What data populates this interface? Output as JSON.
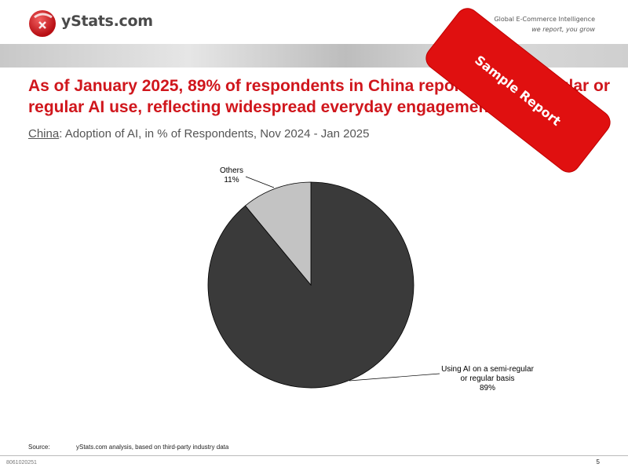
{
  "brand": {
    "logo_text": "yStats.com",
    "tagline_line1": "Global E-Commerce Intelligence",
    "tagline_line2": "we report, you grow"
  },
  "headline": "As of January 2025, 89% of respondents in China reported semi-regular or regular AI use, reflecting widespread everyday engagement with AI.",
  "subtitle": {
    "country": "China",
    "text": ": Adoption of AI, in % of Respondents, Nov 2024 - Jan 2025"
  },
  "stamp_text": "Sample Report",
  "chart_data": {
    "type": "pie",
    "slices": [
      {
        "label_line1": "Using AI on a semi-regular",
        "label_line2": "or regular basis",
        "value": 89,
        "value_label": "89%",
        "color": "#3a3a3a"
      },
      {
        "label_line1": "Others",
        "label_line2": "",
        "value": 11,
        "value_label": "11%",
        "color": "#c3c3c3"
      }
    ]
  },
  "source": {
    "label": "Source:",
    "text": "yStats.com analysis, based on third-party industry data"
  },
  "footer": {
    "report_id": "8061020251",
    "page_number": "5"
  }
}
